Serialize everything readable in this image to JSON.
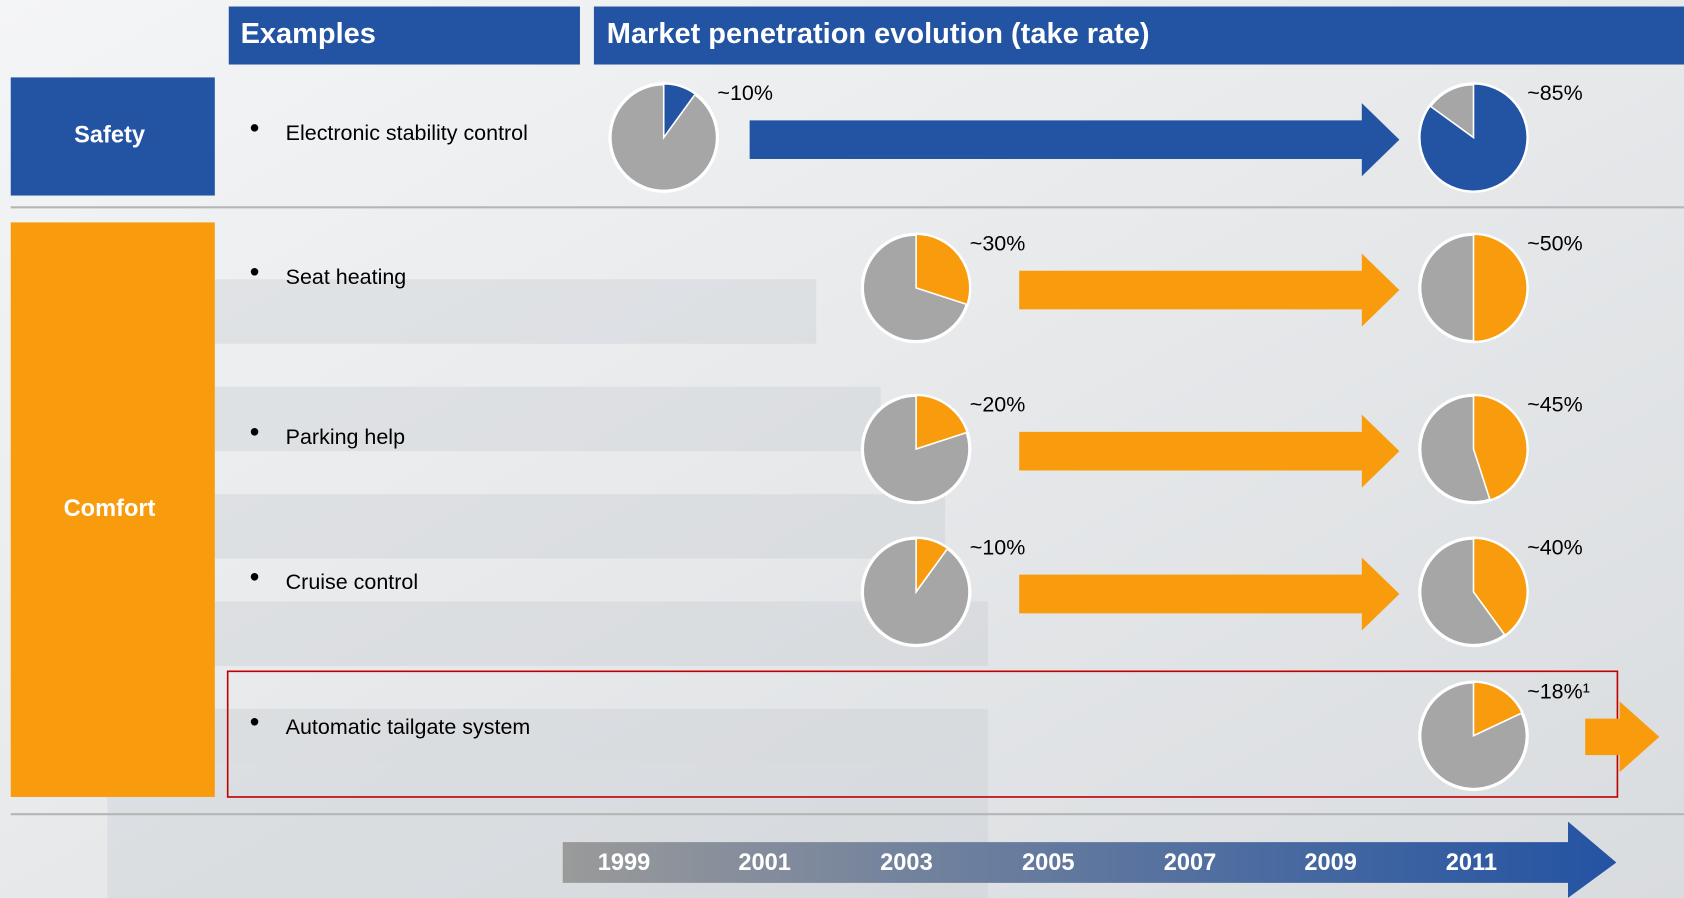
{
  "headers": {
    "examples": "Examples",
    "evolution": "Market penetration evolution (take rate)"
  },
  "groups": [
    {
      "name": "Safety",
      "color": "#2353a3",
      "rows": [
        {
          "example": "Electronic stability control",
          "pies": [
            {
              "value": 10,
              "value_label": "~10%"
            },
            {
              "value": 85,
              "value_label": "~85%"
            }
          ]
        }
      ]
    },
    {
      "name": "Comfort",
      "color": "#f89c0e",
      "rows": [
        {
          "example": "Seat heating",
          "pies": [
            {
              "value": 30,
              "value_label": "~30%"
            },
            {
              "value": 50,
              "value_label": "~50%"
            }
          ]
        },
        {
          "example": "Parking help",
          "pies": [
            {
              "value": 20,
              "value_label": "~20%"
            },
            {
              "value": 45,
              "value_label": "~45%"
            }
          ]
        },
        {
          "example": "Cruise control",
          "pies": [
            {
              "value": 10,
              "value_label": "~10%"
            },
            {
              "value": 40,
              "value_label": "~40%"
            }
          ]
        },
        {
          "example": "Automatic tailgate system",
          "pies": [
            {
              "value": 18,
              "value_label": "~18%¹"
            }
          ]
        }
      ]
    }
  ],
  "timeline": [
    "1999",
    "2001",
    "2003",
    "2005",
    "2007",
    "2009",
    "2011"
  ]
}
